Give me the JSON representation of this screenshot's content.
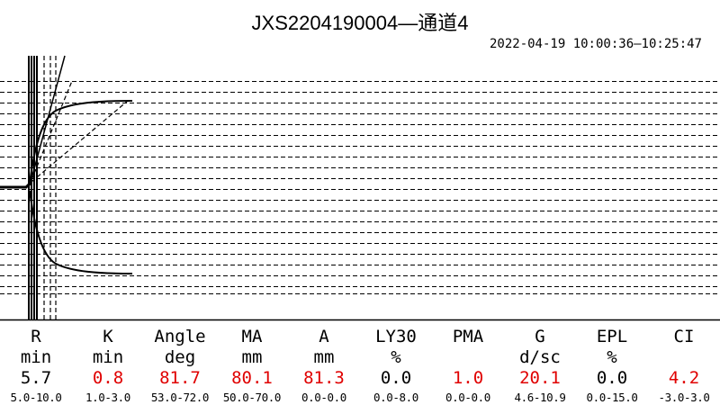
{
  "title": "JXS2204190004—通道4",
  "time_range": "2022-04-19 10:00:36—10:25:47",
  "colors": {
    "normal": "#000000",
    "abnormal": "#e00000",
    "trace": "#000000"
  },
  "chart_data": {
    "type": "line",
    "title": "JXS2204190004—通道4",
    "subtitle": "2022-04-19 10:00:36—10:25:47",
    "grid": true,
    "legend": "none",
    "parameters": [
      {
        "name": "R",
        "unit": "min",
        "value": "5.7",
        "range": "5.0-10.0",
        "status": "normal"
      },
      {
        "name": "K",
        "unit": "min",
        "value": "0.8",
        "range": "1.0-3.0",
        "status": "abnormal"
      },
      {
        "name": "Angle",
        "unit": "deg",
        "value": "81.7",
        "range": "53.0-72.0",
        "status": "abnormal"
      },
      {
        "name": "MA",
        "unit": "mm",
        "value": "80.1",
        "range": "50.0-70.0",
        "status": "abnormal"
      },
      {
        "name": "A",
        "unit": "mm",
        "value": "81.3",
        "range": "0.0-0.0",
        "status": "abnormal"
      },
      {
        "name": "LY30",
        "unit": "%",
        "value": "0.0",
        "range": "0.0-8.0",
        "status": "normal"
      },
      {
        "name": "PMA",
        "unit": "",
        "value": "1.0",
        "range": "0.0-0.0",
        "status": "abnormal"
      },
      {
        "name": "G",
        "unit": "d/sc",
        "value": "20.1",
        "range": "4.6-10.9",
        "status": "abnormal"
      },
      {
        "name": "EPL",
        "unit": "%",
        "value": "0.0",
        "range": "0.0-15.0",
        "status": "normal"
      },
      {
        "name": "CI",
        "unit": "",
        "value": "4.2",
        "range": "-3.0-3.0",
        "status": "abnormal"
      }
    ]
  }
}
